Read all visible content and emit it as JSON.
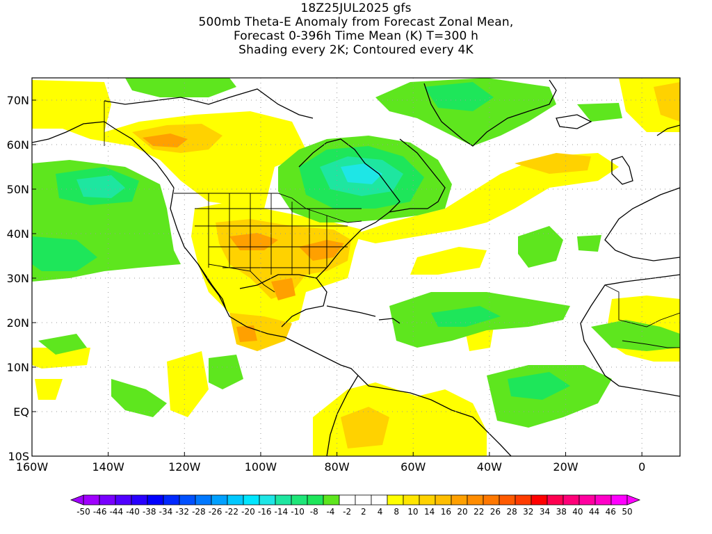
{
  "header": {
    "lines": [
      "18Z25JUL2025 gfs",
      "500mb Theta-E Anomaly from Forecast Zonal Mean,",
      "Forecast 0-396h Time Mean (K) T=300 h",
      "Shading every 2K; Contoured every 4K"
    ]
  },
  "map": {
    "lon_range": [
      -160,
      10
    ],
    "lat_range": [
      -10,
      75
    ],
    "lat_ticks": [
      "70N",
      "60N",
      "50N",
      "40N",
      "30N",
      "20N",
      "10N",
      "EQ",
      "10S"
    ],
    "lon_ticks": [
      "160W",
      "140W",
      "120W",
      "100W",
      "80W",
      "60W",
      "40W",
      "20W",
      "0"
    ],
    "grid": "dotted",
    "colors": {
      "neg_light": "#5ee61e",
      "neg_mid": "#1ee65a",
      "neg_strong": "#1ee6a0",
      "neg_core": "#1ee6e6",
      "pos_light": "#ffff00",
      "pos_mid": "#ffd200",
      "pos_strong": "#ffa000",
      "pos_core": "#ff7800"
    }
  },
  "colorbar": {
    "labels": [
      "-50",
      "-46",
      "-44",
      "-40",
      "-38",
      "-34",
      "-32",
      "-28",
      "-26",
      "-22",
      "-20",
      "-16",
      "-14",
      "-10",
      "-8",
      "-4",
      "-2",
      "2",
      "4",
      "8",
      "10",
      "14",
      "16",
      "20",
      "22",
      "26",
      "28",
      "32",
      "34",
      "38",
      "40",
      "44",
      "46",
      "50"
    ],
    "colors": [
      "#a000ff",
      "#7800ff",
      "#5000ff",
      "#2800ff",
      "#0000ff",
      "#0028ff",
      "#0050ff",
      "#0078ff",
      "#00a0ff",
      "#00c8ff",
      "#00e6ff",
      "#1ee6e6",
      "#1ee6a0",
      "#1ee678",
      "#1ee65a",
      "#5ee61e",
      "#ffffff",
      "#ffffff",
      "#ffffff",
      "#ffff00",
      "#ffe600",
      "#ffd200",
      "#ffbe00",
      "#ffa000",
      "#ff8c00",
      "#ff7800",
      "#ff5a00",
      "#ff3c00",
      "#ff0000",
      "#ff0050",
      "#ff0078",
      "#ff00a0",
      "#ff00c8",
      "#ff00ff"
    ]
  }
}
